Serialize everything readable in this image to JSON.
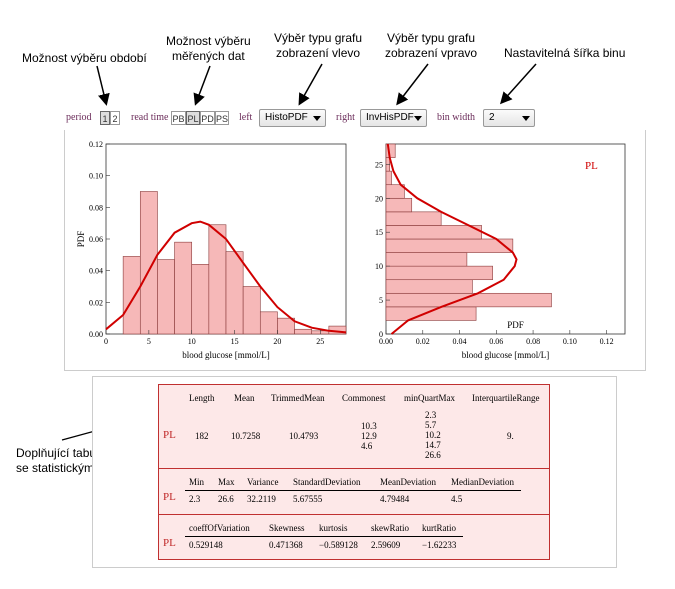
{
  "callouts": {
    "period": "Možnost výběru období",
    "data": [
      "Možnost výběru",
      "měřených dat"
    ],
    "left": [
      "Výběr typu grafu",
      "zobrazení vlevo"
    ],
    "right": [
      "Výběr typu grafu",
      "zobrazení vpravo"
    ],
    "bin": "Nastavitelná šířka binu",
    "table": [
      "Doplňující tabulka",
      "se statistickými údaji"
    ]
  },
  "controls": {
    "period_label": "period",
    "period_options": [
      "1",
      "2"
    ],
    "period_selected": "1",
    "readtime_label": "read time",
    "readtime_options": [
      "PB",
      "PL",
      "PD",
      "PS"
    ],
    "readtime_selected": "PL",
    "left_label": "left",
    "left_value": "HistoPDF",
    "right_label": "right",
    "right_value": "InvHisPDF",
    "bin_label": "bin width",
    "bin_value": "2"
  },
  "colors": {
    "bar_fill": "#f6b8b8",
    "bar_stroke": "#8a3a3a",
    "curve": "#d00000",
    "label": "#6b2c5a",
    "table_bg": "#fde8e8",
    "table_border": "#c03030"
  },
  "chart_data": [
    {
      "type": "bar",
      "orientation": "vertical",
      "x_bin_edges": [
        2,
        4,
        6,
        8,
        10,
        12,
        14,
        16,
        18,
        20,
        22,
        24,
        26,
        28
      ],
      "values": [
        0.049,
        0.09,
        0.047,
        0.058,
        0.044,
        0.069,
        0.052,
        0.03,
        0.014,
        0.01,
        0.003,
        0.002,
        0.005
      ],
      "curve_x": [
        0,
        2,
        4,
        6,
        8,
        10,
        11,
        12,
        14,
        16,
        18,
        20,
        22,
        24,
        26,
        28
      ],
      "curve_y": [
        0.003,
        0.012,
        0.03,
        0.05,
        0.064,
        0.07,
        0.071,
        0.069,
        0.06,
        0.045,
        0.03,
        0.017,
        0.008,
        0.004,
        0.002,
        0.001
      ],
      "xlabel": "blood glucose [mmol/L]",
      "ylabel": "PDF",
      "xlim": [
        0,
        28
      ],
      "ylim": [
        0,
        0.12
      ],
      "x_ticks": [
        0,
        5,
        10,
        15,
        20,
        25
      ],
      "y_ticks": [
        "0.00",
        "0.02",
        "0.04",
        "0.06",
        "0.08",
        "0.10",
        "0.12"
      ]
    },
    {
      "type": "bar",
      "orientation": "horizontal",
      "y_bin_edges": [
        2,
        4,
        6,
        8,
        10,
        12,
        14,
        16,
        18,
        20,
        22,
        24,
        26,
        28
      ],
      "values": [
        0.049,
        0.09,
        0.047,
        0.058,
        0.044,
        0.069,
        0.052,
        0.03,
        0.014,
        0.01,
        0.003,
        0.002,
        0.005
      ],
      "series_label": "PL",
      "xlabel": "PDF",
      "ylabel": "blood glucose [mmol/L]",
      "xlim": [
        0,
        0.13
      ],
      "ylim": [
        0,
        28
      ],
      "x_ticks": [
        "0.00",
        "0.02",
        "0.04",
        "0.06",
        "0.08",
        "0.10",
        "0.12"
      ],
      "y_ticks": [
        0,
        5,
        10,
        15,
        20,
        25
      ]
    }
  ],
  "stats": {
    "row_label": "PL",
    "table1": {
      "headers": [
        "Length",
        "Mean",
        "TrimmedMean",
        "Commonest",
        "minQuartMax",
        "InterquartileRange"
      ],
      "length": "182",
      "mean": "10.7258",
      "trimmed": "10.4793",
      "commonest": [
        "10.3",
        "12.9",
        "4.6"
      ],
      "minquartmax": [
        "2.3",
        "5.7",
        "10.2",
        "14.7",
        "26.6"
      ],
      "iqr": "9."
    },
    "table2": {
      "headers": [
        "Min",
        "Max",
        "Variance",
        "StandardDeviation",
        "MeanDeviation",
        "MedianDeviation"
      ],
      "values": [
        "2.3",
        "26.6",
        "32.2119",
        "5.67555",
        "4.79484",
        "4.5"
      ]
    },
    "table3": {
      "headers": [
        "coeffOfVariation",
        "Skewness",
        "kurtosis",
        "skewRatio",
        "kurtRatio"
      ],
      "values": [
        "0.529148",
        "0.471368",
        "−0.589128",
        "2.59609",
        "−1.62233"
      ]
    }
  }
}
